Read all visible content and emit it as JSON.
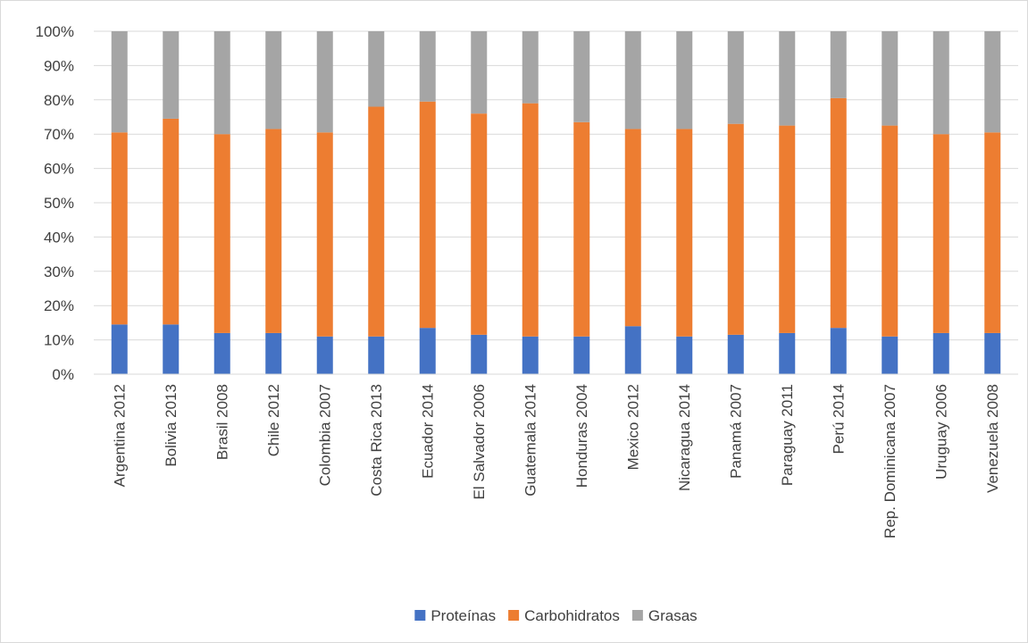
{
  "chart_data": {
    "type": "bar",
    "stacked": true,
    "normalized": true,
    "title": "",
    "xlabel": "",
    "ylabel": "",
    "ylim": [
      0,
      100
    ],
    "y_ticks": [
      "0%",
      "10%",
      "20%",
      "30%",
      "40%",
      "50%",
      "60%",
      "70%",
      "80%",
      "90%",
      "100%"
    ],
    "grid": true,
    "legend_position": "bottom",
    "categories": [
      "Argentina 2012",
      "Bolivia 2013",
      "Brasil 2008",
      "Chile 2012",
      "Colombia 2007",
      "Costa Rica 2013",
      "Ecuador 2014",
      "El Salvador 2006",
      "Guatemala 2014",
      "Honduras 2004",
      "Mexico 2012",
      "Nicaragua 2014",
      "Panamá 2007",
      "Paraguay 2011",
      "Perú 2014",
      "Rep. Dominicana 2007",
      "Uruguay 2006",
      "Venezuela 2008"
    ],
    "series": [
      {
        "name": "Proteínas",
        "color": "#4472c4",
        "values": [
          14.5,
          14.5,
          12,
          12,
          11,
          11,
          13.5,
          11.5,
          11,
          11,
          14,
          11,
          11.5,
          12,
          13.5,
          11,
          12,
          12
        ]
      },
      {
        "name": "Carbohidratos",
        "color": "#ed7d31",
        "values": [
          56,
          60,
          58,
          59.5,
          59.5,
          67,
          66,
          64.5,
          68,
          62.5,
          57.5,
          60.5,
          61.5,
          60.5,
          67,
          61.5,
          58,
          58.5
        ]
      },
      {
        "name": "Grasas",
        "color": "#a5a5a5",
        "values": [
          29.5,
          25.5,
          30,
          28.5,
          29.5,
          22,
          20.5,
          24,
          21,
          26.5,
          28.5,
          28.5,
          27,
          27.5,
          19.5,
          27.5,
          30,
          29.5
        ]
      }
    ]
  }
}
